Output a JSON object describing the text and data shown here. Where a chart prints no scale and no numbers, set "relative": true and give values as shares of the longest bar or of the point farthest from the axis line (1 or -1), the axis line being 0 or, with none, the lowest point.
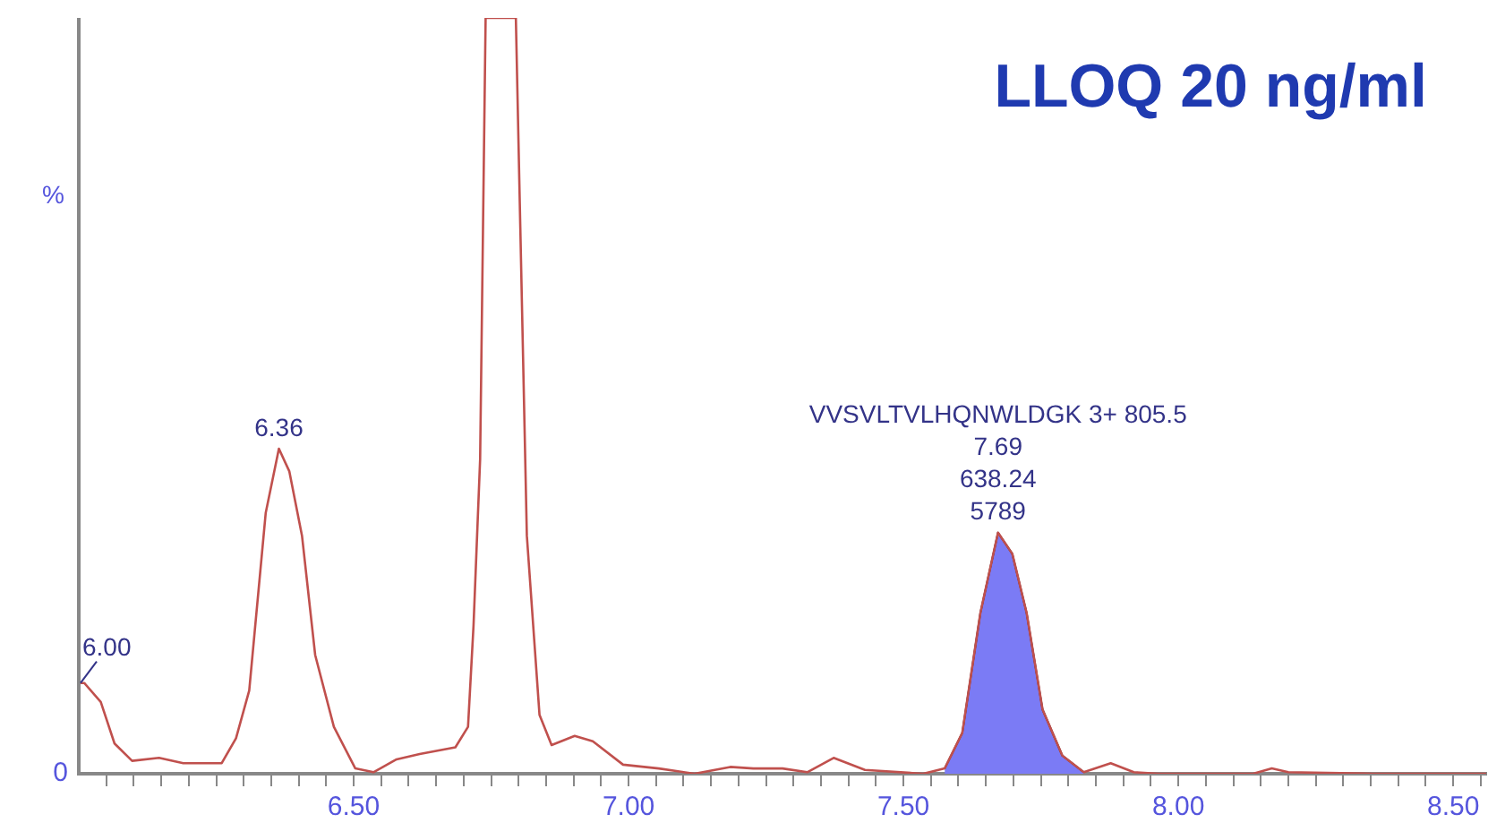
{
  "chart_data": {
    "type": "line",
    "title": "LLOQ 20 ng/ml",
    "ylabel": "%",
    "relative": true,
    "legend": false,
    "grid": false,
    "marker": "none",
    "xlim": [
      6.0,
      8.56
    ],
    "xticks": [
      {
        "value": 6.05,
        "label": null
      },
      {
        "value": 6.1,
        "label": null
      },
      {
        "value": 6.15,
        "label": null
      },
      {
        "value": 6.2,
        "label": null
      },
      {
        "value": 6.25,
        "label": null
      },
      {
        "value": 6.3,
        "label": null
      },
      {
        "value": 6.35,
        "label": null
      },
      {
        "value": 6.4,
        "label": null
      },
      {
        "value": 6.45,
        "label": null
      },
      {
        "value": 6.5,
        "label": "6.50"
      },
      {
        "value": 6.55,
        "label": null
      },
      {
        "value": 6.6,
        "label": null
      },
      {
        "value": 6.65,
        "label": null
      },
      {
        "value": 6.7,
        "label": null
      },
      {
        "value": 6.75,
        "label": null
      },
      {
        "value": 6.8,
        "label": null
      },
      {
        "value": 6.85,
        "label": null
      },
      {
        "value": 6.9,
        "label": null
      },
      {
        "value": 6.95,
        "label": null
      },
      {
        "value": 7.0,
        "label": "7.00"
      },
      {
        "value": 7.05,
        "label": null
      },
      {
        "value": 7.1,
        "label": null
      },
      {
        "value": 7.15,
        "label": null
      },
      {
        "value": 7.2,
        "label": null
      },
      {
        "value": 7.25,
        "label": null
      },
      {
        "value": 7.3,
        "label": null
      },
      {
        "value": 7.35,
        "label": null
      },
      {
        "value": 7.4,
        "label": null
      },
      {
        "value": 7.45,
        "label": null
      },
      {
        "value": 7.5,
        "label": "7.50"
      },
      {
        "value": 7.55,
        "label": null
      },
      {
        "value": 7.6,
        "label": null
      },
      {
        "value": 7.65,
        "label": null
      },
      {
        "value": 7.7,
        "label": null
      },
      {
        "value": 7.75,
        "label": null
      },
      {
        "value": 7.8,
        "label": null
      },
      {
        "value": 7.85,
        "label": null
      },
      {
        "value": 7.9,
        "label": null
      },
      {
        "value": 7.95,
        "label": null
      },
      {
        "value": 8.0,
        "label": "8.00"
      },
      {
        "value": 8.05,
        "label": null
      },
      {
        "value": 8.1,
        "label": null
      },
      {
        "value": 8.15,
        "label": null
      },
      {
        "value": 8.2,
        "label": null
      },
      {
        "value": 8.25,
        "label": null
      },
      {
        "value": 8.3,
        "label": null
      },
      {
        "value": 8.35,
        "label": null
      },
      {
        "value": 8.4,
        "label": null
      },
      {
        "value": 8.45,
        "label": null
      },
      {
        "value": 8.5,
        "label": "8.50"
      },
      {
        "value": 8.55,
        "label": null
      }
    ],
    "series": [
      {
        "color": "#c0504d",
        "x": [
          6.0,
          6.01,
          6.04,
          6.065,
          6.097,
          6.146,
          6.19,
          6.26,
          6.286,
          6.31,
          6.34,
          6.364,
          6.383,
          6.406,
          6.43,
          6.464,
          6.503,
          6.536,
          6.578,
          6.62,
          6.685,
          6.708,
          6.718,
          6.73,
          6.74,
          6.766,
          6.795,
          6.815,
          6.838,
          6.86,
          6.902,
          6.935,
          6.99,
          7.055,
          7.12,
          7.185,
          7.227,
          7.28,
          7.325,
          7.373,
          7.43,
          7.536,
          7.575,
          7.607,
          7.64,
          7.672,
          7.698,
          7.724,
          7.753,
          7.789,
          7.828,
          7.877,
          7.919,
          7.964,
          8.136,
          8.17,
          8.2,
          8.354,
          8.56
        ],
        "values": [
          0.12,
          0.12,
          0.095,
          0.04,
          0.017,
          0.021,
          0.014,
          0.014,
          0.047,
          0.11,
          0.345,
          0.43,
          0.4,
          0.315,
          0.157,
          0.062,
          0.007,
          0.002,
          0.019,
          0.026,
          0.035,
          0.062,
          0.196,
          0.416,
          1,
          1,
          1,
          0.315,
          0.078,
          0.038,
          0.05,
          0.043,
          0.012,
          0.007,
          0,
          0.009,
          0.007,
          0.007,
          0.002,
          0.021,
          0.005,
          0,
          0.007,
          0.054,
          0.213,
          0.319,
          0.291,
          0.213,
          0.085,
          0.024,
          0.002,
          0.014,
          0.002,
          0,
          0,
          0.007,
          0.002,
          0,
          0
        ]
      },
      {
        "type": "area",
        "color": "#7b7bf5",
        "x": [
          7.575,
          7.607,
          7.64,
          7.672,
          7.698,
          7.724,
          7.753,
          7.789,
          7.828
        ],
        "values": [
          0.007,
          0.054,
          0.213,
          0.319,
          0.291,
          0.213,
          0.085,
          0.024,
          0.002
        ]
      }
    ],
    "annotations": [
      "0",
      {
        "text": "6.00",
        "x": 6.0,
        "y": 0.12
      },
      {
        "text": "6.36",
        "x": 6.364,
        "y": 0.43
      },
      {
        "text": "5789",
        "x": 7.672,
        "y": 0.319
      },
      {
        "text": "638.24",
        "x": 7.672,
        "y": 0.319
      },
      {
        "text": "7.69",
        "x": 7.672,
        "y": 0.319
      },
      "VVSVLTVLHQNWLDGK 3+ 805.5"
    ]
  }
}
